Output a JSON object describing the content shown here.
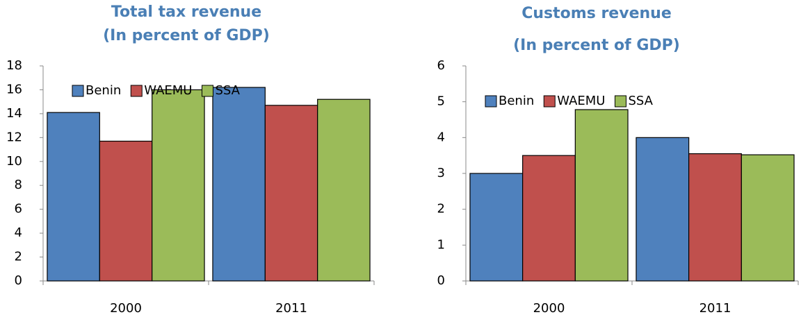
{
  "chart_data": [
    {
      "type": "bar",
      "title": "Total tax revenue",
      "subtitle": "(In percent of GDP)",
      "categories": [
        "2000",
        "2011"
      ],
      "series": [
        {
          "name": "Benin",
          "color": "#4f81bd",
          "values": [
            14.1,
            16.2
          ]
        },
        {
          "name": "WAEMU",
          "color": "#c0504d",
          "values": [
            11.7,
            14.7
          ]
        },
        {
          "name": "SSA",
          "color": "#9bbb59",
          "values": [
            16.0,
            15.2
          ]
        }
      ],
      "ylim": [
        0,
        18
      ],
      "yticks": [
        0,
        2,
        4,
        6,
        8,
        10,
        12,
        14,
        16,
        18
      ],
      "legend": "top"
    },
    {
      "type": "bar",
      "title": "Customs revenue",
      "subtitle": "(In percent of GDP)",
      "categories": [
        "2000",
        "2011"
      ],
      "series": [
        {
          "name": "Benin",
          "color": "#4f81bd",
          "values": [
            3.0,
            4.0
          ]
        },
        {
          "name": "WAEMU",
          "color": "#c0504d",
          "values": [
            3.5,
            3.55
          ]
        },
        {
          "name": "SSA",
          "color": "#9bbb59",
          "values": [
            4.78,
            3.52
          ]
        }
      ],
      "ylim": [
        0,
        6
      ],
      "yticks": [
        0,
        1,
        2,
        3,
        4,
        5,
        6
      ],
      "legend": "top"
    }
  ]
}
